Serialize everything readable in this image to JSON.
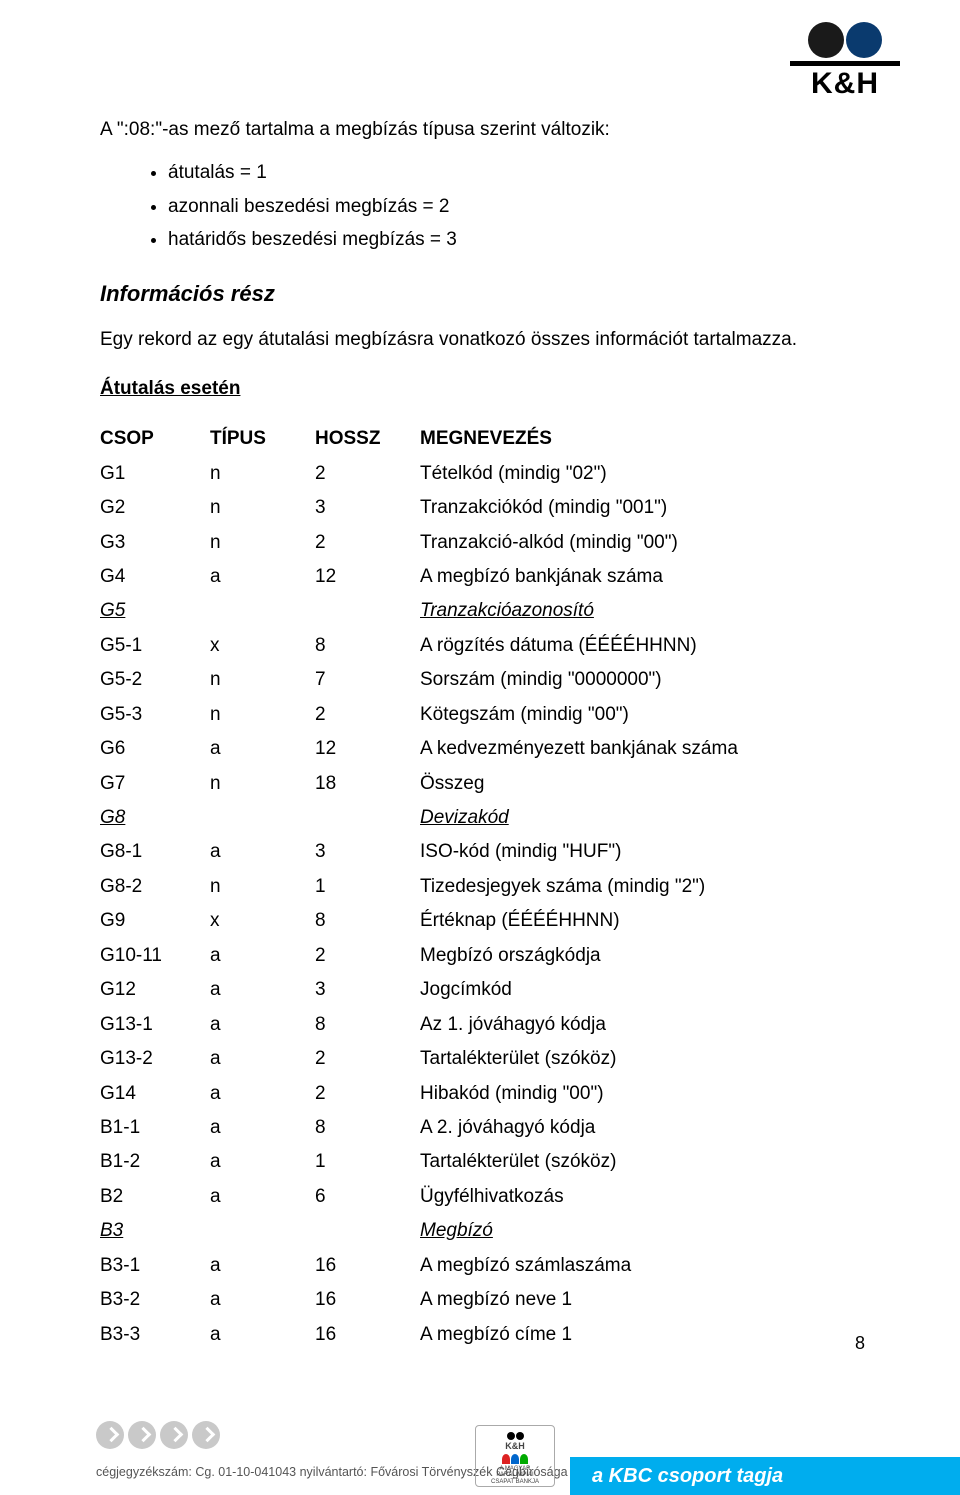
{
  "logo_text": "K&H",
  "intro": "A \":08:\"-as mező tartalma a megbízás típusa szerint változik:",
  "bullets": [
    "átutalás = 1",
    "azonnali beszedési megbízás = 2",
    "határidős beszedési megbízás = 3"
  ],
  "section_heading": "Információs rész",
  "section_para": "Egy rekord az egy átutalási megbízásra vonatkozó összes információt tartalmazza.",
  "case_heading": "Átutalás esetén",
  "columns": {
    "c1": "CSOP",
    "c2": "TÍPUS",
    "c3": "HOSSZ",
    "c4": "MEGNEVEZÉS"
  },
  "rows": [
    {
      "csop": "G1",
      "t": "n",
      "h": "2",
      "m": "Tételkód (mindig \"02\")"
    },
    {
      "csop": "G2",
      "t": "n",
      "h": "3",
      "m": "Tranzakciókód (mindig \"001\")"
    },
    {
      "csop": "G3",
      "t": "n",
      "h": "2",
      "m": "Tranzakció-alkód (mindig \"00\")"
    },
    {
      "csop": "G4",
      "t": "a",
      "h": "12",
      "m": "A megbízó bankjának száma"
    },
    {
      "csop": "G5",
      "t": "",
      "h": "",
      "m": "Tranzakcióazonosító",
      "group": true
    },
    {
      "csop": "G5-1",
      "t": "x",
      "h": "8",
      "m": "A rögzítés dátuma (ÉÉÉÉHHNN)"
    },
    {
      "csop": "G5-2",
      "t": "n",
      "h": "7",
      "m": "Sorszám (mindig \"0000000\")"
    },
    {
      "csop": "G5-3",
      "t": "n",
      "h": "2",
      "m": "Kötegszám (mindig \"00\")"
    },
    {
      "csop": "G6",
      "t": "a",
      "h": "12",
      "m": "A kedvezményezett bankjának száma"
    },
    {
      "csop": "G7",
      "t": "n",
      "h": "18",
      "m": "Összeg"
    },
    {
      "csop": "G8",
      "t": "",
      "h": "",
      "m": "Devizakód",
      "group": true
    },
    {
      "csop": "G8-1",
      "t": "a",
      "h": "3",
      "m": "ISO-kód (mindig \"HUF\")"
    },
    {
      "csop": "G8-2",
      "t": "n",
      "h": "1",
      "m": "Tizedesjegyek száma (mindig \"2\")"
    },
    {
      "csop": "G9",
      "t": "x",
      "h": "8",
      "m": "Értéknap (ÉÉÉÉHHNN)"
    },
    {
      "csop": "G10-11",
      "t": "a",
      "h": "2",
      "m": "Megbízó országkódja"
    },
    {
      "csop": "G12",
      "t": "a",
      "h": "3",
      "m": "Jogcímkód"
    },
    {
      "csop": "G13-1",
      "t": "a",
      "h": "8",
      "m": "Az 1. jóváhagyó kódja"
    },
    {
      "csop": "G13-2",
      "t": "a",
      "h": "2",
      "m": "Tartalékterület (szóköz)"
    },
    {
      "csop": "G14",
      "t": "a",
      "h": "2",
      "m": "Hibakód (mindig \"00\")"
    },
    {
      "csop": "B1-1",
      "t": "a",
      "h": "8",
      "m": "A 2. jóváhagyó kódja"
    },
    {
      "csop": "B1-2",
      "t": "a",
      "h": "1",
      "m": "Tartalékterület (szóköz)"
    },
    {
      "csop": "B2",
      "t": "a",
      "h": "6",
      "m": "Ügyfélhivatkozás"
    },
    {
      "csop": "B3",
      "t": "",
      "h": "",
      "m": "Megbízó",
      "group": true
    },
    {
      "csop": "B3-1",
      "t": "a",
      "h": "16",
      "m": "A megbízó számlaszáma"
    },
    {
      "csop": "B3-2",
      "t": "a",
      "h": "16",
      "m": "A megbízó neve 1"
    },
    {
      "csop": "B3-3",
      "t": "a",
      "h": "16",
      "m": "A megbízó címe 1"
    }
  ],
  "page_number": "8",
  "footer": {
    "kbc": "a KBC csoport tagja",
    "reg": "cégjegyzékszám: Cg. 01-10-041043  nyilvántartó: Fővárosi Törvényszék Cégbírósága",
    "paralymp_lines": [
      "K&H",
      "A MAGYAR",
      "PARALIMPIAI",
      "CSAPAT BANKJA"
    ]
  }
}
